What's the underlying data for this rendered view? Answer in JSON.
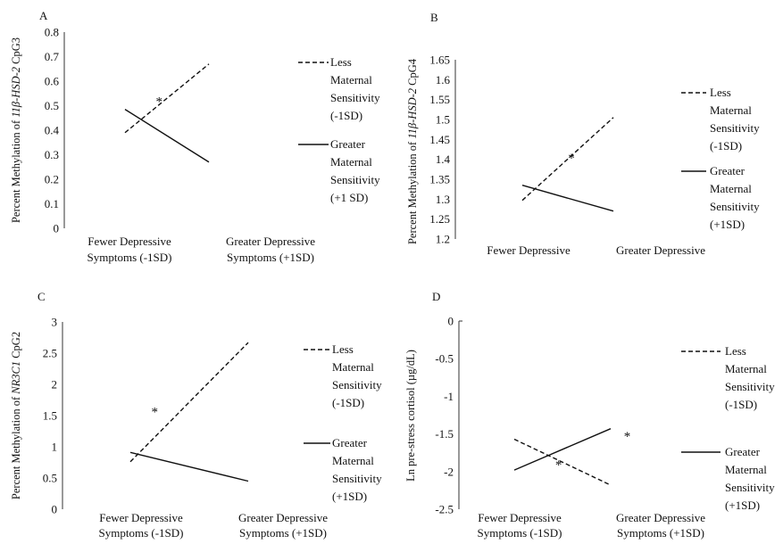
{
  "chart_data": [
    {
      "panel": "A",
      "type": "line",
      "ylabel_prefix": "Percent Methylation of ",
      "ylabel_italic": "11β-HSD-2",
      "ylabel_suffix": " CpG3",
      "categories": [
        "Fewer Depressive Symptoms (-1SD)",
        "Greater Depressive Symptoms (+1SD)"
      ],
      "yticks": [
        "0.8",
        "0.7",
        "0.6",
        "0.5",
        "0.4",
        "0.3",
        "0.2",
        "0.1",
        "0"
      ],
      "ylim": [
        0,
        0.8
      ],
      "series": [
        {
          "name": "Less Maternal Sensitivity (-1SD)",
          "legend_lines": [
            "Less",
            "Maternal",
            "Sensitivity",
            "(-1SD)"
          ],
          "style": "dashed",
          "values": [
            0.39,
            0.67
          ]
        },
        {
          "name": "Greater Maternal Sensitivity (+1 SD)",
          "legend_lines": [
            "Greater",
            "Maternal",
            "Sensitivity",
            "(+1 SD)"
          ],
          "style": "solid",
          "values": [
            0.485,
            0.27
          ]
        }
      ],
      "annotations": [
        {
          "text": "*",
          "x": 0.45,
          "y": 0.53
        }
      ]
    },
    {
      "panel": "B",
      "type": "line",
      "ylabel_prefix": "Percent Methylation of ",
      "ylabel_italic": "11β-HSD-2",
      "ylabel_suffix": " CpG4",
      "categories": [
        "Fewer Depressive",
        "Greater Depressive"
      ],
      "yticks": [
        "1.65",
        "1.6",
        "1.55",
        "1.5",
        "1.45",
        "1.4",
        "1.35",
        "1.3",
        "1.25",
        "1.2"
      ],
      "ylim": [
        1.2,
        1.65
      ],
      "series": [
        {
          "name": "Less Maternal Sensitivity (-1SD)",
          "legend_lines": [
            "Less",
            "Maternal",
            "Sensitivity",
            "(-1SD)"
          ],
          "style": "dashed",
          "values": [
            1.297,
            1.505
          ]
        },
        {
          "name": "Greater Maternal Sensitivity (+1SD)",
          "legend_lines": [
            "Greater",
            "Maternal",
            "Sensitivity",
            "(+1SD)"
          ],
          "style": "solid",
          "values": [
            1.335,
            1.27
          ]
        }
      ],
      "annotations": [
        {
          "text": "*",
          "x": 0.52,
          "y": 1.41
        }
      ]
    },
    {
      "panel": "C",
      "type": "line",
      "ylabel_prefix": "Percent Methylation of ",
      "ylabel_italic": "NR3C1",
      "ylabel_suffix": " CpG2",
      "categories": [
        "Fewer Depressive Symptoms (-1SD)",
        "Greater Depressive Symptoms (+1SD)"
      ],
      "yticks": [
        "3",
        "2.5",
        "2",
        "1.5",
        "1",
        "0.5",
        "0"
      ],
      "ylim": [
        0,
        3
      ],
      "series": [
        {
          "name": "Less Maternal Sensitivity (-1SD)",
          "legend_lines": [
            "Less",
            "Maternal",
            "Sensitivity",
            "(-1SD)"
          ],
          "style": "dashed",
          "values": [
            0.76,
            2.67
          ]
        },
        {
          "name": "Greater Maternal Sensitivity (+1SD)",
          "legend_lines": [
            "Greater",
            "Maternal",
            "Sensitivity",
            "(+1SD)"
          ],
          "style": "solid",
          "values": [
            0.91,
            0.45
          ]
        }
      ],
      "annotations": [
        {
          "text": "*",
          "x": 0.43,
          "y": 1.61
        }
      ]
    },
    {
      "panel": "D",
      "type": "line",
      "ylabel_prefix": "Ln pre-stress cortisol (µg/dL)",
      "ylabel_italic": "",
      "ylabel_suffix": "",
      "categories": [
        "Fewer Depressive Symptoms (-1SD)",
        "Greater Depressive Symptoms (+1SD)"
      ],
      "yticks": [
        "0",
        "-0.5",
        "-1",
        "-1.5",
        "-2",
        "-2.5"
      ],
      "ylim": [
        -2.5,
        0
      ],
      "series": [
        {
          "name": "Less Maternal Sensitivity (-1SD)",
          "legend_lines": [
            "Less",
            "Maternal",
            "Sensitivity",
            "(-1SD)"
          ],
          "style": "dashed",
          "values": [
            -1.57,
            -2.18
          ]
        },
        {
          "name": "Greater Maternal Sensitivity (+1SD)",
          "legend_lines": [
            "Greater",
            "Maternal",
            "Sensitivity",
            "(+1SD)"
          ],
          "style": "solid",
          "values": [
            -1.98,
            -1.43
          ]
        }
      ],
      "annotations": [
        {
          "text": "*",
          "x": 0.45,
          "y": -1.87
        },
        {
          "text": "*",
          "x": 0.76,
          "y": -1.49
        }
      ]
    }
  ]
}
